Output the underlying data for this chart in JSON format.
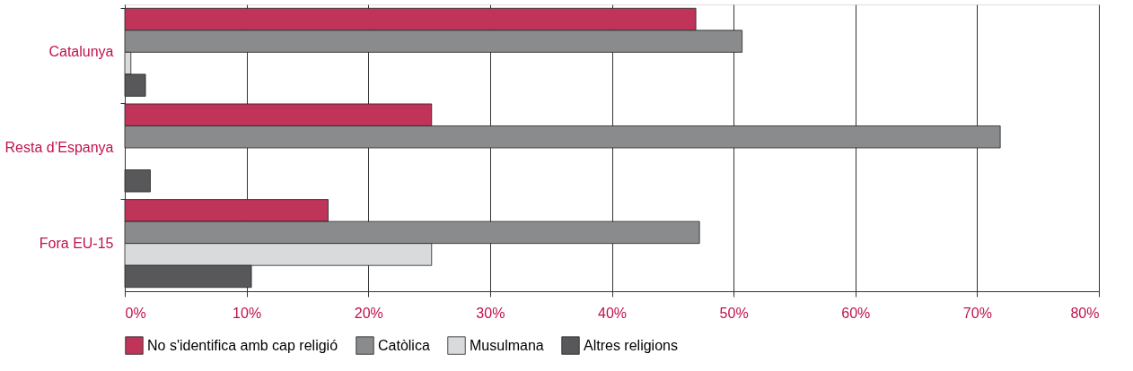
{
  "chart_data": {
    "type": "bar",
    "orientation": "horizontal",
    "categories": [
      "Catalunya",
      "Resta d’Espanya",
      "Fora EU-15"
    ],
    "series": [
      {
        "name": "No s'identifica amb cap religió",
        "color": "#c0345a",
        "values": [
          46.9,
          25.2,
          16.7
        ]
      },
      {
        "name": "Catòlica",
        "color": "#8a8b8d",
        "values": [
          50.7,
          71.9,
          47.2
        ]
      },
      {
        "name": "Musulmana",
        "color": "#d9dadc",
        "values": [
          0.5,
          null,
          25.2
        ]
      },
      {
        "name": "Altres religions",
        "color": "#58585a",
        "values": [
          1.7,
          2.1,
          10.4
        ]
      }
    ],
    "xlim": [
      0,
      80
    ],
    "xticks": [
      {
        "value": 0,
        "label": "0%"
      },
      {
        "value": 10,
        "label": "10%"
      },
      {
        "value": 20,
        "label": "20%"
      },
      {
        "value": 30,
        "label": "30%"
      },
      {
        "value": 40,
        "label": "40%"
      },
      {
        "value": 50,
        "label": "50%"
      },
      {
        "value": 60,
        "label": "60%"
      },
      {
        "value": 70,
        "label": "70%"
      },
      {
        "value": 80,
        "label": "80%"
      }
    ],
    "grid": "x",
    "legend": "bottom"
  }
}
